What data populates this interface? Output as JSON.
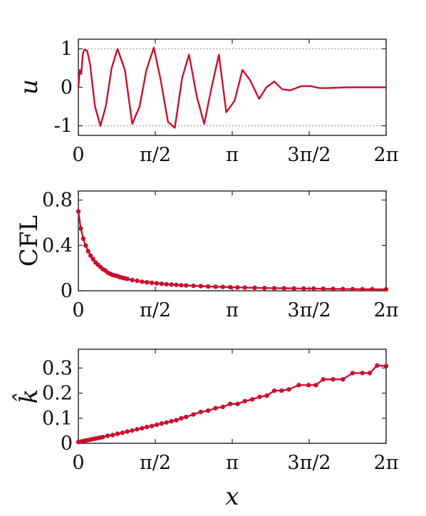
{
  "colors": {
    "series": "#c8102e",
    "axis": "#222222",
    "reference_line": "#888888"
  },
  "chart_data": [
    {
      "type": "line",
      "ylabel": "u",
      "xlabel": "",
      "xlim": [
        0,
        6.2832
      ],
      "ylim": [
        -1.25,
        1.25
      ],
      "grid": false,
      "reference_lines_y": [
        1,
        -1
      ],
      "markers": false,
      "x_ticks": [
        {
          "value": 0,
          "label": "0"
        },
        {
          "value": 1.5708,
          "label": "π/2"
        },
        {
          "value": 3.1416,
          "label": "π"
        },
        {
          "value": 4.7124,
          "label": "3π/2"
        },
        {
          "value": 6.2832,
          "label": "2π"
        }
      ],
      "y_ticks": [
        {
          "value": 1,
          "label": "1"
        },
        {
          "value": 0,
          "label": "0"
        },
        {
          "value": -1,
          "label": "-1"
        }
      ],
      "series": [
        {
          "x": [
            0,
            0.03,
            0.06,
            0.09,
            0.12,
            0.18,
            0.24,
            0.34,
            0.45,
            0.56,
            0.68,
            0.8,
            0.95,
            1.1,
            1.25,
            1.39,
            1.54,
            1.68,
            1.83,
            1.97,
            2.12,
            2.26,
            2.42,
            2.57,
            2.72,
            2.87,
            3.02,
            3.19,
            3.35,
            3.5,
            3.69,
            3.84,
            4.0,
            4.16,
            4.32,
            4.55,
            4.75,
            4.92,
            5.1,
            5.5,
            5.9,
            6.2832
          ],
          "y": [
            0,
            0.45,
            0.35,
            0.85,
            0.98,
            0.95,
            0.6,
            -0.5,
            -1.0,
            -0.5,
            0.5,
            1.0,
            0.45,
            -0.95,
            -0.5,
            0.45,
            1.03,
            0.2,
            -0.9,
            -1.05,
            0.25,
            0.85,
            -0.25,
            -0.95,
            0.0,
            0.85,
            -0.65,
            -0.35,
            0.45,
            0.2,
            -0.3,
            0.0,
            0.15,
            -0.05,
            -0.08,
            0.03,
            0.03,
            -0.02,
            -0.02,
            0.0,
            0.0,
            0.0
          ]
        }
      ]
    },
    {
      "type": "line",
      "ylabel": "CFL",
      "xlabel": "",
      "xlim": [
        0,
        6.2832
      ],
      "ylim": [
        0,
        0.88
      ],
      "grid": false,
      "markers": true,
      "x_ticks": [
        {
          "value": 0,
          "label": "0"
        },
        {
          "value": 1.5708,
          "label": "π/2"
        },
        {
          "value": 3.1416,
          "label": "π"
        },
        {
          "value": 4.7124,
          "label": "3π/2"
        },
        {
          "value": 6.2832,
          "label": "2π"
        }
      ],
      "y_ticks": [
        {
          "value": 0.8,
          "label": "0.8"
        },
        {
          "value": 0.4,
          "label": "0.4"
        },
        {
          "value": 0,
          "label": "0"
        }
      ],
      "series": [
        {
          "x": [
            0,
            0.05,
            0.1,
            0.15,
            0.2,
            0.25,
            0.3,
            0.35,
            0.4,
            0.45,
            0.5,
            0.55,
            0.6,
            0.65,
            0.7,
            0.75,
            0.8,
            0.85,
            0.9,
            0.95,
            1.0,
            1.1,
            1.2,
            1.3,
            1.4,
            1.5,
            1.6,
            1.7,
            1.8,
            1.9,
            2.0,
            2.1,
            2.2,
            2.35,
            2.5,
            2.65,
            2.8,
            2.95,
            3.1,
            3.25,
            3.4,
            3.6,
            3.8,
            4.0,
            4.2,
            4.4,
            4.6,
            4.8,
            5.0,
            5.2,
            5.4,
            5.6,
            5.8,
            6.0,
            6.2832
          ],
          "y": [
            0.7,
            0.55,
            0.46,
            0.4,
            0.35,
            0.31,
            0.28,
            0.25,
            0.23,
            0.21,
            0.19,
            0.18,
            0.16,
            0.15,
            0.14,
            0.135,
            0.13,
            0.12,
            0.115,
            0.11,
            0.105,
            0.095,
            0.088,
            0.08,
            0.075,
            0.07,
            0.066,
            0.062,
            0.058,
            0.055,
            0.052,
            0.049,
            0.047,
            0.044,
            0.041,
            0.038,
            0.036,
            0.034,
            0.032,
            0.03,
            0.028,
            0.026,
            0.024,
            0.023,
            0.022,
            0.021,
            0.02,
            0.019,
            0.018,
            0.017,
            0.016,
            0.015,
            0.014,
            0.014,
            0.013
          ]
        }
      ]
    },
    {
      "type": "line",
      "ylabel": "k̂",
      "xlabel": "x",
      "xlim": [
        0,
        6.2832
      ],
      "ylim": [
        0,
        0.375
      ],
      "grid": false,
      "markers": true,
      "x_ticks": [
        {
          "value": 0,
          "label": "0"
        },
        {
          "value": 1.5708,
          "label": "π/2"
        },
        {
          "value": 3.1416,
          "label": "π"
        },
        {
          "value": 4.7124,
          "label": "3π/2"
        },
        {
          "value": 6.2832,
          "label": "2π"
        }
      ],
      "y_ticks": [
        {
          "value": 0.3,
          "label": "0.3"
        },
        {
          "value": 0.2,
          "label": "0.2"
        },
        {
          "value": 0.1,
          "label": "0.1"
        },
        {
          "value": 0,
          "label": "0"
        }
      ],
      "series": [
        {
          "x": [
            0,
            0.05,
            0.1,
            0.15,
            0.2,
            0.25,
            0.3,
            0.35,
            0.4,
            0.45,
            0.5,
            0.6,
            0.7,
            0.8,
            0.9,
            1.0,
            1.1,
            1.2,
            1.3,
            1.4,
            1.5,
            1.6,
            1.7,
            1.8,
            1.9,
            2.0,
            2.1,
            2.2,
            2.35,
            2.5,
            2.65,
            2.8,
            2.95,
            3.1,
            3.25,
            3.4,
            3.55,
            3.7,
            3.85,
            4.0,
            4.15,
            4.3,
            4.5,
            4.7,
            4.85,
            5.0,
            5.2,
            5.4,
            5.6,
            5.8,
            5.95,
            6.1,
            6.2832
          ],
          "y": [
            0.005,
            0.007,
            0.009,
            0.011,
            0.013,
            0.015,
            0.017,
            0.019,
            0.021,
            0.023,
            0.025,
            0.03,
            0.033,
            0.038,
            0.042,
            0.047,
            0.051,
            0.056,
            0.06,
            0.065,
            0.069,
            0.074,
            0.079,
            0.083,
            0.088,
            0.092,
            0.1,
            0.105,
            0.115,
            0.125,
            0.13,
            0.14,
            0.145,
            0.157,
            0.157,
            0.168,
            0.175,
            0.185,
            0.19,
            0.21,
            0.21,
            0.215,
            0.232,
            0.232,
            0.232,
            0.255,
            0.255,
            0.255,
            0.28,
            0.28,
            0.28,
            0.31,
            0.308
          ]
        }
      ]
    }
  ]
}
